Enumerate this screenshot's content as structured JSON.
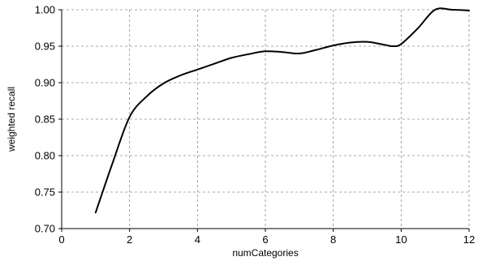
{
  "chart_data": {
    "type": "line",
    "title": "",
    "xlabel": "numCategories",
    "ylabel": "weighted recall",
    "xlim": [
      0,
      12
    ],
    "ylim": [
      0.7,
      1.0
    ],
    "xticks": [
      0,
      2,
      4,
      6,
      8,
      10,
      12
    ],
    "xtick_labels": [
      "0",
      "2",
      "4",
      "6",
      "8",
      "10",
      "12"
    ],
    "yticks": [
      0.7,
      0.75,
      0.8,
      0.85,
      0.9,
      0.95,
      1.0
    ],
    "ytick_labels": [
      "0.70",
      "0.75",
      "0.80",
      "0.85",
      "0.90",
      "0.95",
      "1.00"
    ],
    "grid": true,
    "series": [
      {
        "color": "#000000",
        "x": [
          1,
          1.5,
          2,
          2.5,
          3,
          3.5,
          4,
          4.5,
          5,
          5.5,
          6,
          6.5,
          7,
          7.5,
          8,
          8.5,
          9,
          9.5,
          9.75,
          10,
          10.5,
          11,
          11.5,
          12
        ],
        "y": [
          0.722,
          0.79,
          0.853,
          0.881,
          0.899,
          0.91,
          0.918,
          0.926,
          0.934,
          0.939,
          0.943,
          0.942,
          0.94,
          0.945,
          0.951,
          0.955,
          0.956,
          0.952,
          0.95,
          0.953,
          0.975,
          1.0,
          1.0,
          0.999
        ]
      }
    ]
  }
}
